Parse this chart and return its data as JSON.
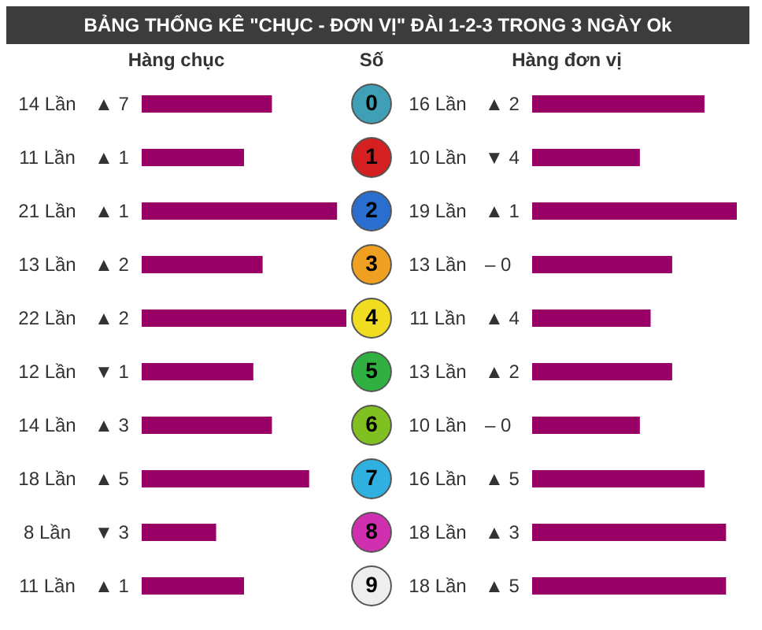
{
  "chart_data": [
    {
      "type": "bar",
      "orientation": "horizontal",
      "title": "BẢNG THỐNG KÊ \"CHỤC - ĐƠN VỊ\" ĐÀI 1-2-3 TRONG 3 NGÀY Ok",
      "xlabel": "Hàng chục",
      "ylabel": "Số",
      "categories": [
        "0",
        "1",
        "2",
        "3",
        "4",
        "5",
        "6",
        "7",
        "8",
        "9"
      ],
      "color": "#990066",
      "values": [
        14,
        11,
        21,
        13,
        22,
        12,
        14,
        18,
        8,
        11
      ],
      "value_labels": [
        "14 Lần",
        "11 Lần",
        "21 Lần",
        "13 Lần",
        "22 Lần",
        "12 Lần",
        "14 Lần",
        "18 Lần",
        "8 Lần",
        "11 Lần"
      ],
      "annotations": [
        "▲ 7",
        "▲ 1",
        "▲ 1",
        "▲ 2",
        "▲ 2",
        "▼ 1",
        "▲ 3",
        "▲ 5",
        "▼ 3",
        "▲ 1"
      ]
    },
    {
      "type": "bar",
      "orientation": "horizontal",
      "xlabel": "Hàng đơn vị",
      "categories": [
        null,
        null,
        null,
        null,
        null,
        null,
        null,
        null,
        null,
        null
      ],
      "color": "#990066",
      "values": [
        16,
        10,
        19,
        13,
        11,
        13,
        10,
        16,
        18,
        18
      ],
      "value_labels": [
        "16 Lần",
        "10 Lần",
        "19 Lần",
        "13 Lần",
        "11 Lần",
        "13 Lần",
        "10 Lần",
        "16 Lần",
        "18 Lần",
        "18 Lần"
      ],
      "annotations": [
        "▲ 2",
        "▼ 4",
        "▲ 1",
        "– 0",
        "▲ 4",
        "▲ 2",
        "– 0",
        "▲ 5",
        "▲ 3",
        "▲ 5"
      ]
    }
  ]
}
